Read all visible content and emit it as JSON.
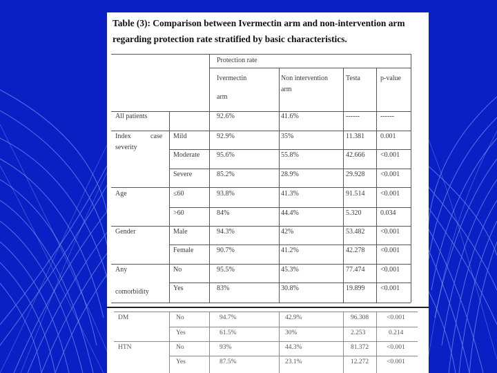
{
  "slide": {
    "title": "Table (3): Comparison between Ivermectin arm and non-intervention arm regarding protection rate stratified by basic characteristics."
  },
  "table": {
    "header": {
      "group": "Protection rate",
      "col_iver_1": "Ivermectin",
      "col_iver_2": "arm",
      "col_non_1": "Non intervention",
      "col_non_2": "arm",
      "col_test": "Testa",
      "col_p": "p-value"
    },
    "rows": [
      {
        "cat": "All patients",
        "sub": "",
        "iver": "92.6%",
        "non": "41.6%",
        "test": "------",
        "p": "------"
      },
      {
        "cat": "Index case severity",
        "cat_1": "Index",
        "cat_1b": "case",
        "cat_2": "severity",
        "sub": "Mild",
        "iver": "92.9%",
        "non": "35%",
        "test": "11.381",
        "p": "0.001"
      },
      {
        "sub": "Moderate",
        "iver": "95.6%",
        "non": "55.8%",
        "test": "42.666",
        "p": "<0.001"
      },
      {
        "sub": "Severe",
        "iver": "85.2%",
        "non": "28.9%",
        "test": "29.928",
        "p": "<0.001"
      },
      {
        "cat": "Age",
        "sub": "≤60",
        "iver": "93.8%",
        "non": "41.3%",
        "test": "91.514",
        "p": "<0.001"
      },
      {
        "sub": ">60",
        "iver": "84%",
        "non": "44.4%",
        "test": "5.320",
        "p": "0.034"
      },
      {
        "cat": "Gender",
        "sub": "Male",
        "iver": "94.3%",
        "non": "42%",
        "test": "53.482",
        "p": "<0.001"
      },
      {
        "sub": "Female",
        "iver": "90.7%",
        "non": "41.2%",
        "test": "42.278",
        "p": "<0.001"
      },
      {
        "cat_1": "Any",
        "cat_2": "comorbidity",
        "sub": "No",
        "iver": "95.5%",
        "non": "45.3%",
        "test": "77.474",
        "p": "<0.001"
      },
      {
        "sub": "Yes",
        "iver": "83%",
        "non": "30.8%",
        "test": "19.899",
        "p": "<0.001"
      }
    ],
    "lower_rows": [
      {
        "cat": "DM",
        "sub": "No",
        "iver": "94.7%",
        "non": "42.9%",
        "test": "96.308",
        "p": "<0.001"
      },
      {
        "sub": "Yes",
        "iver": "61.5%",
        "non": "30%",
        "test": "2.253",
        "p": "0.214"
      },
      {
        "cat": "HTN",
        "sub": "No",
        "iver": "93%",
        "non": "44.3%",
        "test": "81.372",
        "p": "<0.001"
      },
      {
        "sub": "Yes",
        "iver": "87.5%",
        "non": "23.1%",
        "test": "12.272",
        "p": "<0.001"
      }
    ]
  },
  "colors": {
    "background": "#0a1fc4",
    "paper": "#ffffff",
    "line_art": "#8fb8ff"
  }
}
